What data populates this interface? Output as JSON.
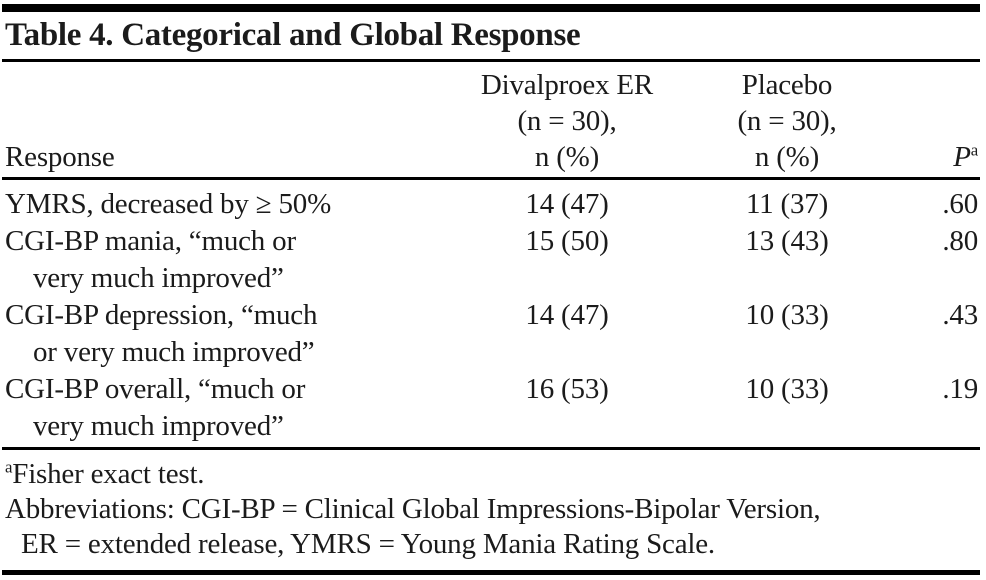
{
  "colors": {
    "background": "#ffffff",
    "text": "#1b1b1b",
    "rule": "#000000"
  },
  "title": "Table 4. Categorical and Global Response",
  "table": {
    "headers": {
      "response": "Response",
      "divalproex_lines": [
        "Divalproex ER",
        "(n = 30),",
        "n (%)"
      ],
      "placebo_lines": [
        "Placebo",
        "(n = 30),",
        "n (%)"
      ],
      "p_label": "P",
      "p_sup": "a"
    },
    "rows": [
      {
        "lines": [
          "YMRS, decreased by ≥ 50%"
        ],
        "divalproex": "14 (47)",
        "placebo": "11 (37)",
        "p": ".60"
      },
      {
        "lines": [
          "CGI-BP mania, “much or",
          "very much improved”"
        ],
        "divalproex": "15 (50)",
        "placebo": "13 (43)",
        "p": ".80"
      },
      {
        "lines": [
          "CGI-BP depression, “much",
          "or very much improved”"
        ],
        "divalproex": "14 (47)",
        "placebo": "10 (33)",
        "p": ".43"
      },
      {
        "lines": [
          "CGI-BP overall, “much or",
          "very much improved”"
        ],
        "divalproex": "16 (53)",
        "placebo": "10 (33)",
        "p": ".19"
      }
    ]
  },
  "footnotes": {
    "fisher_sup": "a",
    "fisher_text": "Fisher exact test.",
    "abbrev_lines": [
      "Abbreviations: CGI-BP = Clinical Global Impressions-Bipolar Version,",
      "ER = extended release, YMRS = Young Mania Rating Scale."
    ]
  }
}
